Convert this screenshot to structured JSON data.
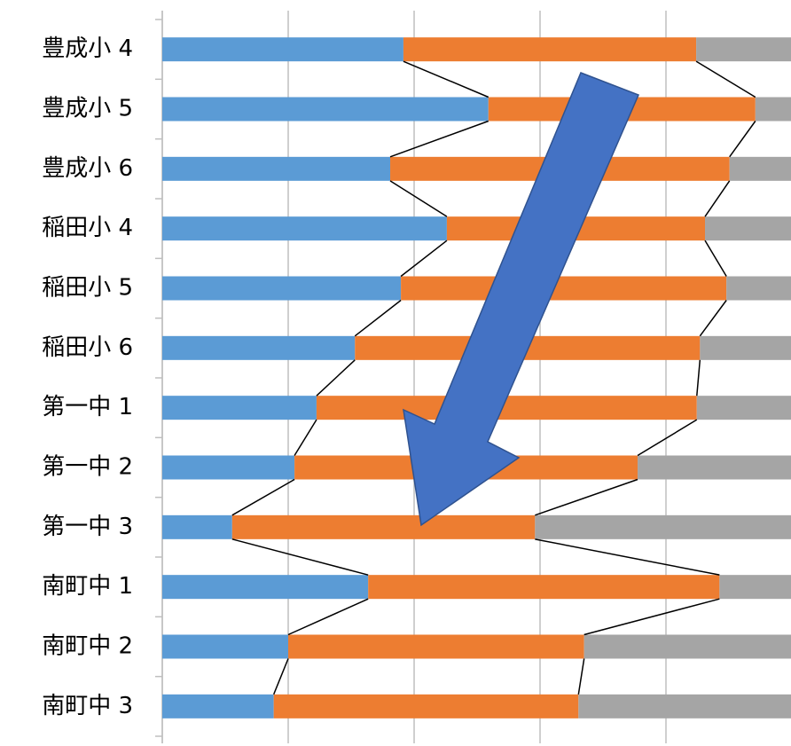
{
  "chart_data": {
    "type": "stacked-barh",
    "categories": [
      "豊成小 4",
      "豊成小 5",
      "豊成小 6",
      "稲田小 4",
      "稲田小 5",
      "稲田小 6",
      "第一中 1",
      "第一中 2",
      "第一中 3",
      "南町中 1",
      "南町中 2",
      "南町中 3"
    ],
    "series": [
      {
        "color": "#5b9bd5",
        "values": [
          38.3,
          51.8,
          36.2,
          45.2,
          37.9,
          30.6,
          24.5,
          21.0,
          11.1,
          32.7,
          20.0,
          17.7
        ]
      },
      {
        "color": "#ed7d31",
        "values": [
          46.5,
          42.4,
          53.9,
          41.0,
          51.7,
          54.8,
          60.4,
          54.5,
          48.1,
          55.8,
          47.0,
          48.4
        ]
      },
      {
        "color": "#a5a5a5",
        "values": [
          15.2,
          5.8,
          9.9,
          13.8,
          10.4,
          14.6,
          15.1,
          24.5,
          40.8,
          11.5,
          33.0,
          33.9
        ]
      }
    ],
    "xlim": [
      0,
      100
    ],
    "xticks": [
      0,
      20,
      40,
      60,
      80,
      100
    ],
    "grid": true
  }
}
